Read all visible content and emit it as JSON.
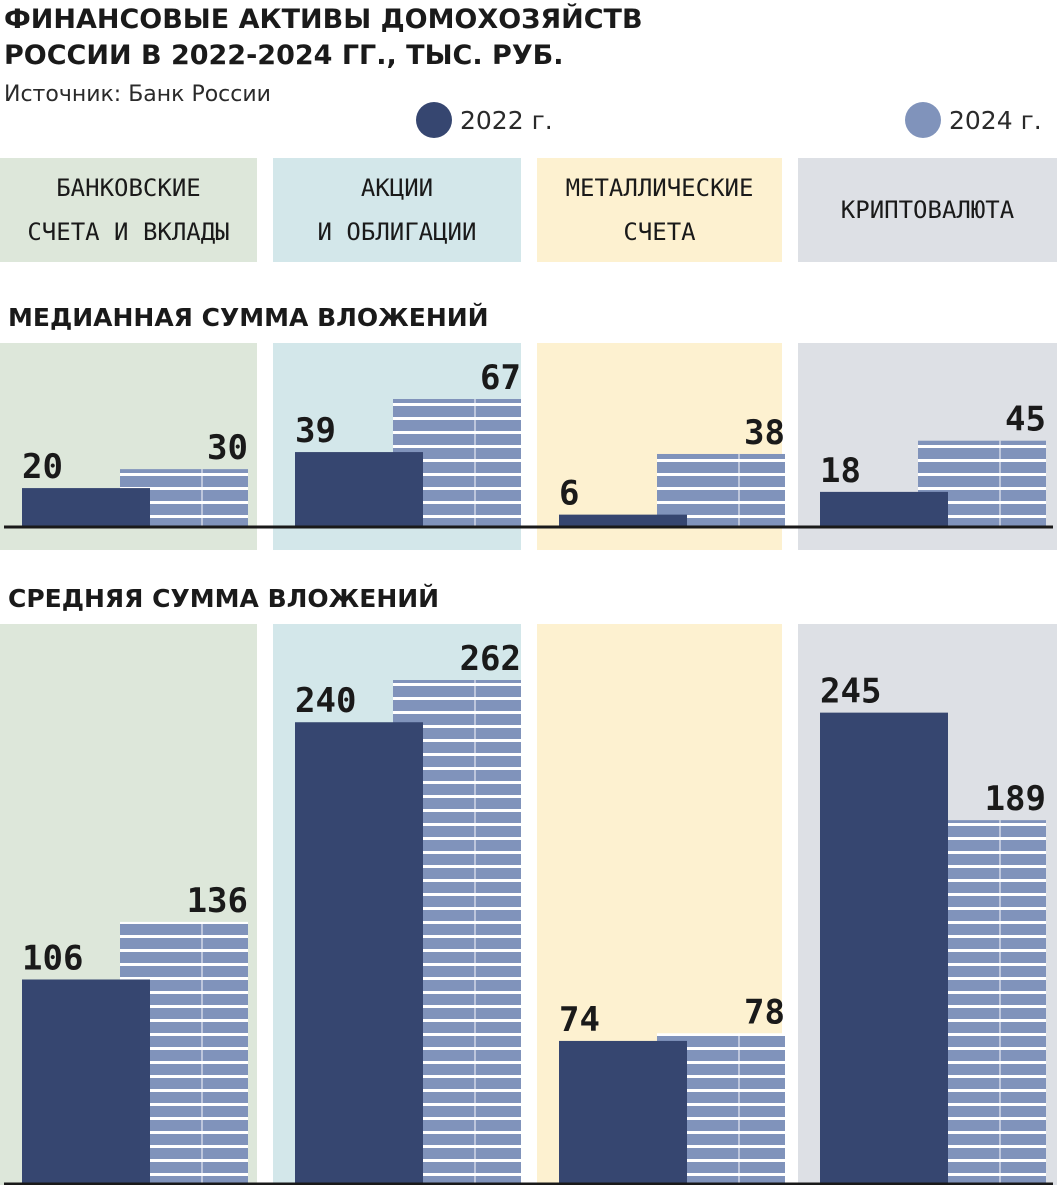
{
  "title_line1": "ФИНАНСОВЫЕ АКТИВЫ ДОМОХОЗЯЙСТВ",
  "title_line2": "РОССИИ В 2022-2024 ГГ., ТЫС. РУБ.",
  "source": "Источник: Банк России",
  "colors": {
    "y2022": "#364670",
    "y2024": "#8093bb",
    "stripe": "#ffffff",
    "panel_bank": "#dde7da",
    "panel_stocks": "#d3e7ea",
    "panel_metal": "#fdf1d0",
    "panel_crypto": "#dde0e5",
    "baseline": "#1a1a1a"
  },
  "chart_data": {
    "type": "bar",
    "title": "ФИНАНСОВЫЕ АКТИВЫ ДОМОХОЗЯЙСТВ РОССИИ В 2022-2024 ГГ., ТЫС. РУБ.",
    "categories": [
      "БАНКОВСКИЕ\nСЧЕТА И ВКЛАДЫ",
      "АКЦИИ\nИ ОБЛИГАЦИИ",
      "МЕТАЛЛИЧЕСКИЕ\nСЧЕТА",
      "КРИПТОВАЛЮТА"
    ],
    "legend": [
      {
        "name": "2022 г.",
        "color": "#364670",
        "pattern": "solid"
      },
      {
        "name": "2024 г.",
        "color": "#8093bb",
        "pattern": "striped"
      }
    ],
    "legend_position": "top-right",
    "grid": false,
    "panels": [
      {
        "title": "МЕДИАННАЯ СУММА ВЛОЖЕНИЙ",
        "series": [
          {
            "name": "2022 г.",
            "values": [
              20,
              39,
              6,
              18
            ]
          },
          {
            "name": "2024 г.",
            "values": [
              30,
              67,
              38,
              45
            ]
          }
        ]
      },
      {
        "title": "СРЕДНЯЯ СУММА ВЛОЖЕНИЙ",
        "series": [
          {
            "name": "2022 г.",
            "values": [
              106,
              240,
              74,
              245
            ]
          },
          {
            "name": "2024 г.",
            "values": [
              136,
              262,
              78,
              189
            ]
          }
        ]
      }
    ]
  }
}
